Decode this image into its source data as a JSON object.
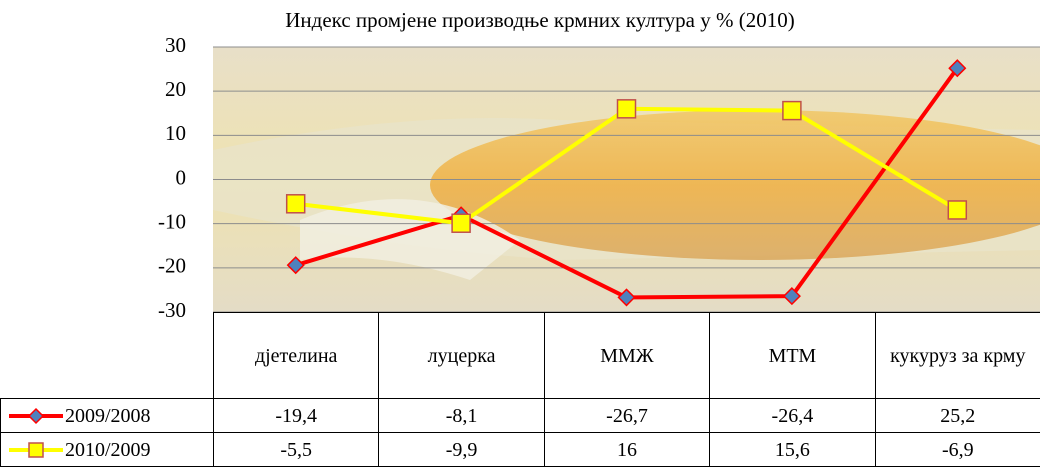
{
  "chart_data": {
    "type": "line",
    "title": "Индекс промјене производње крмних култура у % (2010)",
    "categories": [
      "дјетелина",
      "луцерка",
      "ММЖ",
      "МТМ",
      "кукуруз за крму"
    ],
    "series": [
      {
        "name": "2009/2008",
        "color": "#ff0000",
        "marker": "diamond",
        "marker_color": "#4f81bd",
        "values": [
          -19.4,
          -8.1,
          -26.7,
          -26.4,
          25.2
        ],
        "value_labels": [
          "-19,4",
          "-8,1",
          "-26,7",
          "-26,4",
          "25,2"
        ]
      },
      {
        "name": "2010/2009",
        "color": "#ffff00",
        "marker": "square",
        "marker_color": "#ffff00",
        "values": [
          -5.5,
          -9.9,
          16,
          15.6,
          -6.9
        ],
        "value_labels": [
          "-5,5",
          "-9,9",
          "16",
          "15,6",
          "-6,9"
        ]
      }
    ],
    "ylim": [
      -30,
      30
    ],
    "yticks": [
      -30,
      -20,
      -10,
      0,
      10,
      20,
      30
    ],
    "grid": true,
    "data_table": true
  }
}
